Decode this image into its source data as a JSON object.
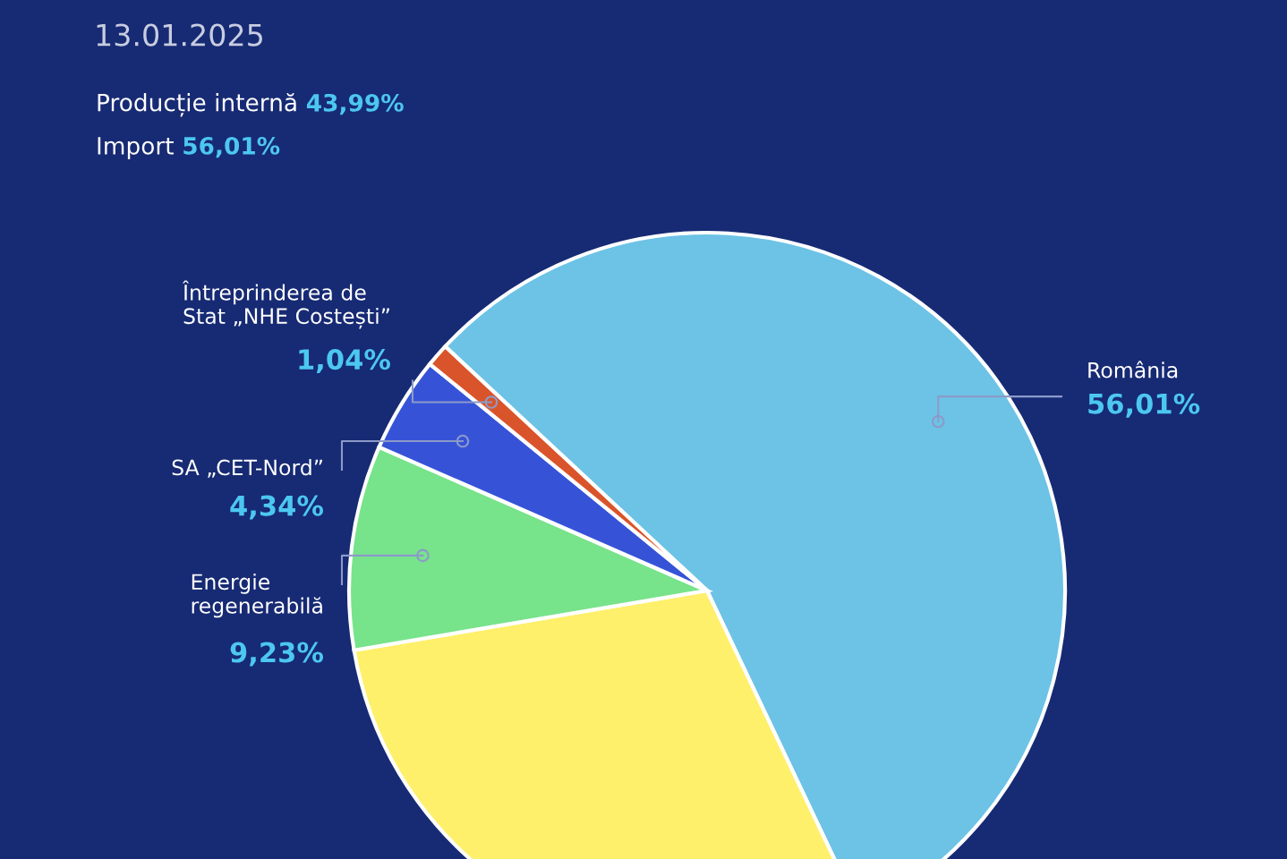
{
  "chart_data": {
    "type": "pie",
    "title": "13.01.2025",
    "annotations": [
      "Producție internă 43,99%",
      "Import 56,01%"
    ],
    "categories": [
      "România",
      null,
      "Energie\nregenerabilă",
      "SA „CET-Nord”",
      "Întreprinderea de\nStat „NHE Costești”"
    ],
    "values": [
      56.01,
      29.38,
      9.23,
      4.34,
      1.04
    ],
    "value_labels": [
      "56,01%",
      null,
      "9,23%",
      "4,34%",
      "1,04%"
    ],
    "colors": [
      "#6cc3e6",
      "#fef06a",
      "#77e38a",
      "#3653d8",
      "#d9542a"
    ],
    "legend": false
  }
}
